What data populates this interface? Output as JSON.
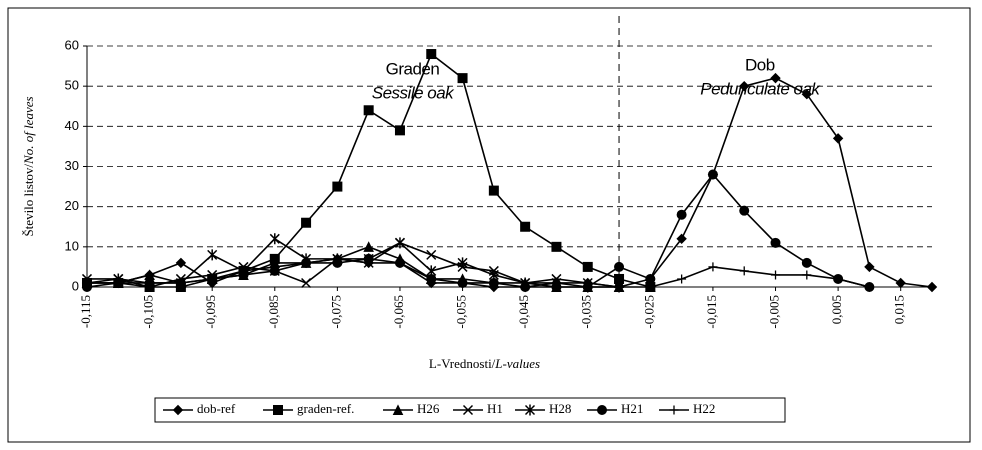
{
  "chart_data": {
    "type": "line",
    "y_label": [
      "Število listov/",
      "No. of leaves"
    ],
    "x_label": [
      "L-Vrednosti/",
      "L-values"
    ],
    "annotations": [
      {
        "text": "Graden",
        "italic": false,
        "x": -0.063,
        "y": 54
      },
      {
        "text": "Sessile oak",
        "italic": true,
        "x": -0.063,
        "y": 48
      },
      {
        "text": "Dob",
        "italic": false,
        "x": -0.0075,
        "y": 55
      },
      {
        "text": "Pedunculate oak",
        "italic": true,
        "x": -0.0075,
        "y": 49
      }
    ],
    "vline": -0.03,
    "x": [
      -0.115,
      -0.11,
      -0.105,
      -0.1,
      -0.095,
      -0.09,
      -0.085,
      -0.08,
      -0.075,
      -0.07,
      -0.065,
      -0.06,
      -0.055,
      -0.05,
      -0.045,
      -0.04,
      -0.035,
      -0.03,
      -0.025,
      -0.02,
      -0.015,
      -0.01,
      -0.005,
      0,
      0.005,
      0.01,
      0.015,
      0.02
    ],
    "xlim": [
      -0.115,
      0.02
    ],
    "xticks": [
      {
        "value": -0.115,
        "label": "-0,115"
      },
      {
        "value": -0.105,
        "label": "-0,105"
      },
      {
        "value": -0.095,
        "label": "-0,095"
      },
      {
        "value": -0.085,
        "label": "-0,085"
      },
      {
        "value": -0.075,
        "label": "-0,075"
      },
      {
        "value": -0.065,
        "label": "-0,065"
      },
      {
        "value": -0.055,
        "label": "-0,055"
      },
      {
        "value": -0.045,
        "label": "-0,045"
      },
      {
        "value": -0.035,
        "label": "-0,035"
      },
      {
        "value": -0.025,
        "label": "-0,025"
      },
      {
        "value": -0.015,
        "label": "-0,015"
      },
      {
        "value": -0.005,
        "label": "-0,005"
      },
      {
        "value": 0.005,
        "label": "0,005"
      },
      {
        "value": 0.015,
        "label": "0,015"
      }
    ],
    "ylim": [
      0,
      60
    ],
    "yticks": [
      0,
      10,
      20,
      30,
      40,
      50,
      60
    ],
    "grid": true,
    "legend": "bottom",
    "series": [
      {
        "name": "dob-ref",
        "color": "#000000",
        "marker": "diamond",
        "values": [
          1,
          1,
          3,
          6,
          1,
          4,
          5,
          6,
          7,
          6,
          6,
          1,
          1,
          0,
          0,
          1,
          1,
          0,
          2,
          12,
          28,
          50,
          52,
          48,
          37,
          5,
          1,
          0
        ]
      },
      {
        "name": "graden-ref.",
        "color": "#000000",
        "marker": "square",
        "values": [
          1,
          1,
          0,
          0,
          2,
          4,
          7,
          16,
          25,
          44,
          39,
          58,
          52,
          24,
          15,
          10,
          5,
          2,
          0,
          null,
          null,
          null,
          null,
          null,
          null,
          null,
          null,
          null
        ]
      },
      {
        "name": "H26",
        "color": "#000000",
        "marker": "triangle",
        "values": [
          1,
          1,
          3,
          1,
          2,
          3,
          6,
          6,
          7,
          10,
          7,
          2,
          2,
          1,
          1,
          0,
          0,
          0,
          0,
          null,
          null,
          null,
          null,
          null,
          null,
          null,
          null,
          null
        ]
      },
      {
        "name": "H1",
        "color": "#000000",
        "marker": "x",
        "values": [
          2,
          2,
          0,
          2,
          3,
          5,
          4,
          1,
          7,
          6,
          11,
          8,
          5,
          4,
          1,
          2,
          1,
          0,
          null,
          null,
          null,
          null,
          null,
          null,
          null,
          null,
          null,
          null
        ]
      },
      {
        "name": "H28",
        "color": "#000000",
        "marker": "star",
        "values": [
          1,
          2,
          1,
          1,
          8,
          4,
          12,
          7,
          7,
          7,
          11,
          4,
          6,
          3,
          1,
          1,
          0,
          0,
          null,
          null,
          null,
          null,
          null,
          null,
          null,
          null,
          null,
          null
        ]
      },
      {
        "name": "H21",
        "color": "#000000",
        "marker": "circle",
        "values": [
          0,
          1,
          1,
          1,
          2,
          3,
          4,
          6,
          6,
          7,
          6,
          2,
          1,
          1,
          0,
          0,
          0,
          5,
          2,
          18,
          28,
          19,
          11,
          6,
          2,
          0,
          null,
          null
        ]
      },
      {
        "name": "H22",
        "color": "#000000",
        "marker": "plus",
        "values": [
          null,
          null,
          null,
          null,
          null,
          null,
          null,
          null,
          null,
          null,
          null,
          null,
          null,
          null,
          null,
          null,
          null,
          null,
          0,
          2,
          5,
          4,
          3,
          3,
          2,
          0,
          null,
          null
        ]
      }
    ]
  }
}
